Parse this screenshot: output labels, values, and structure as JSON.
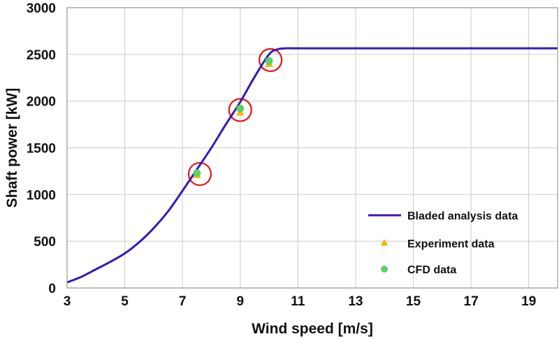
{
  "chart_data": {
    "type": "line",
    "xlabel": "Wind speed [m/s]",
    "ylabel": "Shaft power [kW]",
    "xlim": [
      3,
      20
    ],
    "ylim": [
      0,
      3000
    ],
    "xticks": [
      3,
      5,
      7,
      9,
      11,
      13,
      15,
      17,
      19
    ],
    "yticks": [
      0,
      500,
      1000,
      1500,
      2000,
      2500,
      3000
    ],
    "grid": true,
    "legend_position": "bottom-right",
    "series": [
      {
        "name": "Bladed analysis data",
        "kind": "line",
        "color": "#3a18b4",
        "x": [
          3,
          3.5,
          4,
          4.5,
          5,
          5.5,
          6,
          6.5,
          7,
          7.5,
          8,
          8.5,
          9,
          9.5,
          10,
          10.3,
          10.6,
          11,
          12,
          14,
          16,
          18,
          20
        ],
        "y": [
          60,
          120,
          200,
          280,
          370,
          490,
          640,
          820,
          1040,
          1270,
          1500,
          1750,
          1990,
          2260,
          2500,
          2555,
          2565,
          2565,
          2565,
          2565,
          2565,
          2565,
          2565
        ]
      },
      {
        "name": "Experiment data",
        "kind": "scatter",
        "marker": "triangle",
        "color": "#f5b800",
        "x": [
          7.5,
          9,
          10
        ],
        "y": [
          1210,
          1880,
          2400
        ]
      },
      {
        "name": "CFD data",
        "kind": "scatter",
        "marker": "circle",
        "color": "#58d468",
        "x": [
          7.5,
          9,
          10
        ],
        "y": [
          1230,
          1920,
          2430
        ]
      }
    ],
    "annotations": [
      {
        "type": "circle",
        "color": "#e01818",
        "x": 7.6,
        "y": 1220
      },
      {
        "type": "circle",
        "color": "#e01818",
        "x": 9.0,
        "y": 1905
      },
      {
        "type": "circle",
        "color": "#e01818",
        "x": 10.05,
        "y": 2440
      }
    ]
  }
}
